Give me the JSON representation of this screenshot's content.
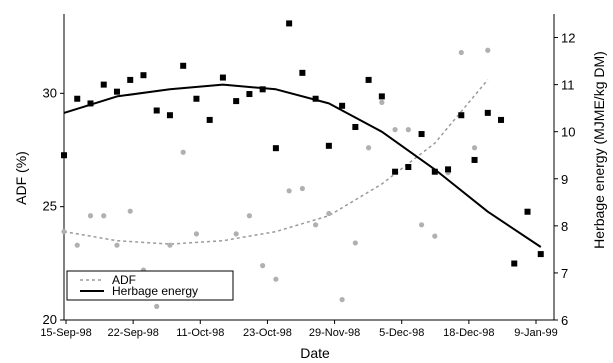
{
  "chart_data": {
    "type": "scatter",
    "xlabel": "Date",
    "ylabel_left": "ADF (%)",
    "ylabel_right": "Herbage energy (MJME/kg DM)",
    "x_tick_labels": [
      "15-Sep-98",
      "22-Sep-98",
      "11-Oct-98",
      "23-Oct-98",
      "29-Nov-98",
      "5-Dec-98",
      "18-Dec-98",
      "9-Jan-99"
    ],
    "y_left_ticks": [
      "20",
      "25",
      "30"
    ],
    "y_right_ticks": [
      "6",
      "7",
      "8",
      "9",
      "10",
      "11",
      "12"
    ],
    "ylim_left": [
      20,
      33.5
    ],
    "ylim_right": [
      6,
      12.5
    ],
    "grid": false,
    "legend_position": "bottom-left",
    "series": [
      {
        "name": "ADF",
        "axis": "left",
        "marker": "gray-dot",
        "color": "#9a9a9a",
        "points": [
          [
            0,
            23.9
          ],
          [
            1,
            23.3
          ],
          [
            2,
            24.6
          ],
          [
            3,
            24.6
          ],
          [
            4,
            23.3
          ],
          [
            5,
            24.8
          ],
          [
            6,
            22.2
          ],
          [
            7,
            20.6
          ],
          [
            8,
            23.3
          ],
          [
            9,
            27.4
          ],
          [
            10,
            23.8
          ],
          [
            11,
            21.8
          ],
          [
            12,
            21.7
          ],
          [
            13,
            23.8
          ],
          [
            14,
            24.6
          ],
          [
            15,
            22.4
          ],
          [
            16,
            21.8
          ],
          [
            17,
            25.7
          ],
          [
            18,
            25.8
          ],
          [
            19,
            24.2
          ],
          [
            20,
            24.7
          ],
          [
            21,
            20.9
          ],
          [
            22,
            23.4
          ],
          [
            23,
            27.6
          ],
          [
            24,
            29.6
          ],
          [
            25,
            28.4
          ],
          [
            26,
            28.4
          ],
          [
            27,
            24.2
          ],
          [
            28,
            23.7
          ],
          [
            29,
            26.5
          ],
          [
            30,
            31.8
          ],
          [
            31,
            27.6
          ],
          [
            32,
            31.9
          ]
        ],
        "trend": [
          [
            0,
            23.9
          ],
          [
            4,
            23.5
          ],
          [
            8,
            23.35
          ],
          [
            12,
            23.5
          ],
          [
            16,
            23.9
          ],
          [
            20,
            24.6
          ],
          [
            24,
            26.0
          ],
          [
            28,
            27.8
          ],
          [
            32,
            30.6
          ]
        ]
      },
      {
        "name": "Herbage energy",
        "axis": "right",
        "marker": "black-square",
        "color": "#000000",
        "points": [
          [
            0,
            9.5
          ],
          [
            1,
            10.7
          ],
          [
            2,
            10.6
          ],
          [
            3,
            11.0
          ],
          [
            4,
            10.85
          ],
          [
            5,
            11.1
          ],
          [
            6,
            11.2
          ],
          [
            7,
            10.45
          ],
          [
            8,
            10.35
          ],
          [
            9,
            11.4
          ],
          [
            10,
            10.7
          ],
          [
            11,
            10.25
          ],
          [
            12,
            11.15
          ],
          [
            13,
            10.65
          ],
          [
            14,
            10.8
          ],
          [
            15,
            10.9
          ],
          [
            16,
            9.65
          ],
          [
            17,
            12.3
          ],
          [
            18,
            11.25
          ],
          [
            19,
            10.7
          ],
          [
            20,
            9.7
          ],
          [
            21,
            10.55
          ],
          [
            22,
            10.1
          ],
          [
            23,
            11.1
          ],
          [
            24,
            10.75
          ],
          [
            25,
            9.15
          ],
          [
            26,
            9.25
          ],
          [
            27,
            9.95
          ],
          [
            28,
            9.15
          ],
          [
            29,
            9.2
          ],
          [
            30,
            10.35
          ],
          [
            31,
            9.4
          ],
          [
            32,
            10.4
          ],
          [
            33,
            10.25
          ],
          [
            34,
            7.2
          ],
          [
            35,
            8.3
          ],
          [
            36,
            7.4
          ]
        ],
        "trend": [
          [
            0,
            10.4
          ],
          [
            4,
            10.75
          ],
          [
            8,
            10.9
          ],
          [
            12,
            11.0
          ],
          [
            16,
            10.9
          ],
          [
            20,
            10.6
          ],
          [
            24,
            10.0
          ],
          [
            28,
            9.2
          ],
          [
            32,
            8.3
          ],
          [
            36,
            7.55
          ]
        ]
      }
    ],
    "legend": [
      {
        "label": "ADF",
        "style": "dashed-gray"
      },
      {
        "label": "Herbage energy",
        "style": "solid-black"
      }
    ]
  }
}
